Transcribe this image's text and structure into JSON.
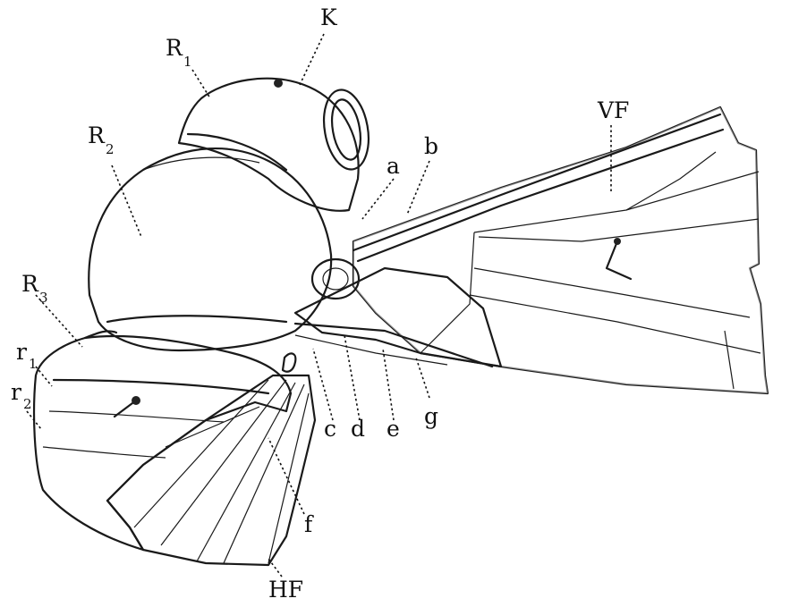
{
  "labels": {
    "K": "K",
    "R1_main": "R",
    "R1_sub": "1",
    "R2_main": "R",
    "R2_sub": "2",
    "R3_main": "R",
    "R3_sub": "3",
    "r1_main": "r",
    "r1_sub": "1",
    "r2_main": "r",
    "r2_sub": "2",
    "VF": "VF",
    "HF": "HF",
    "a": "a",
    "b": "b",
    "c": "c",
    "d": "d",
    "e": "e",
    "f": "f",
    "g": "g"
  }
}
